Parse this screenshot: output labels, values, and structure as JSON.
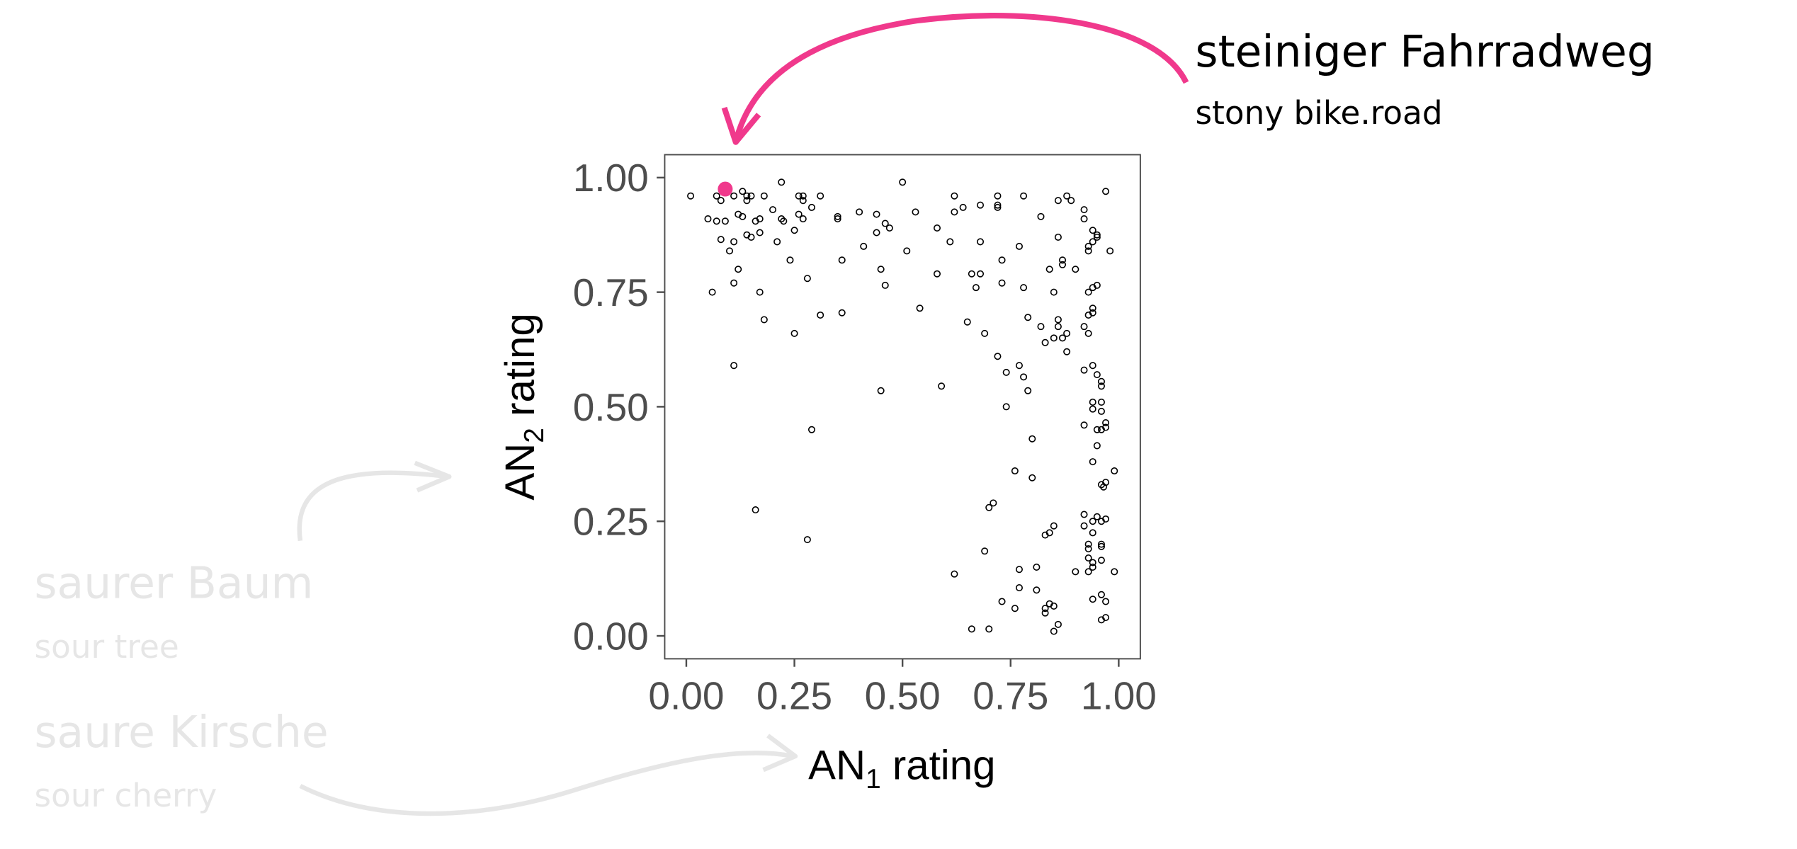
{
  "chart_data": {
    "type": "scatter",
    "xlabel": {
      "main": "AN",
      "sub": "1",
      "rest": " rating"
    },
    "ylabel": {
      "main": "AN",
      "sub": "2",
      "rest": " rating"
    },
    "xlim": [
      -0.05,
      1.05
    ],
    "ylim": [
      -0.05,
      1.05
    ],
    "xticks": [
      0,
      0.25,
      0.5,
      0.75,
      1
    ],
    "yticks": [
      0,
      0.25,
      0.5,
      0.75,
      1
    ],
    "xtick_labels": [
      "0.00",
      "0.25",
      "0.50",
      "0.75",
      "1.00"
    ],
    "ytick_labels": [
      "0.00",
      "0.25",
      "0.50",
      "0.75",
      "1.00"
    ],
    "grid": false,
    "highlight": {
      "x": 0.09,
      "y": 0.975,
      "color": "#f0398c"
    },
    "points": [
      [
        0.01,
        0.96
      ],
      [
        0.07,
        0.96
      ],
      [
        0.11,
        0.96
      ],
      [
        0.13,
        0.97
      ],
      [
        0.14,
        0.96
      ],
      [
        0.15,
        0.96
      ],
      [
        0.22,
        0.99
      ],
      [
        0.18,
        0.96
      ],
      [
        0.26,
        0.96
      ],
      [
        0.27,
        0.95
      ],
      [
        0.27,
        0.96
      ],
      [
        0.31,
        0.96
      ],
      [
        0.5,
        0.99
      ],
      [
        0.62,
        0.96
      ],
      [
        0.72,
        0.96
      ],
      [
        0.78,
        0.96
      ],
      [
        0.88,
        0.96
      ],
      [
        0.97,
        0.97
      ],
      [
        0.86,
        0.95
      ],
      [
        0.72,
        0.94
      ],
      [
        0.72,
        0.935
      ],
      [
        0.89,
        0.95
      ],
      [
        0.14,
        0.95
      ],
      [
        0.08,
        0.95
      ],
      [
        0.05,
        0.91
      ],
      [
        0.07,
        0.905
      ],
      [
        0.09,
        0.905
      ],
      [
        0.12,
        0.92
      ],
      [
        0.13,
        0.915
      ],
      [
        0.16,
        0.905
      ],
      [
        0.17,
        0.91
      ],
      [
        0.2,
        0.93
      ],
      [
        0.22,
        0.91
      ],
      [
        0.225,
        0.905
      ],
      [
        0.26,
        0.92
      ],
      [
        0.27,
        0.91
      ],
      [
        0.29,
        0.935
      ],
      [
        0.35,
        0.915
      ],
      [
        0.35,
        0.91
      ],
      [
        0.4,
        0.925
      ],
      [
        0.44,
        0.92
      ],
      [
        0.46,
        0.9
      ],
      [
        0.47,
        0.89
      ],
      [
        0.53,
        0.925
      ],
      [
        0.62,
        0.925
      ],
      [
        0.64,
        0.935
      ],
      [
        0.68,
        0.94
      ],
      [
        0.82,
        0.915
      ],
      [
        0.92,
        0.93
      ],
      [
        0.92,
        0.91
      ],
      [
        0.94,
        0.885
      ],
      [
        0.08,
        0.865
      ],
      [
        0.1,
        0.84
      ],
      [
        0.11,
        0.86
      ],
      [
        0.14,
        0.875
      ],
      [
        0.15,
        0.87
      ],
      [
        0.17,
        0.88
      ],
      [
        0.21,
        0.86
      ],
      [
        0.25,
        0.885
      ],
      [
        0.41,
        0.85
      ],
      [
        0.44,
        0.88
      ],
      [
        0.51,
        0.84
      ],
      [
        0.58,
        0.89
      ],
      [
        0.61,
        0.86
      ],
      [
        0.68,
        0.86
      ],
      [
        0.77,
        0.85
      ],
      [
        0.86,
        0.87
      ],
      [
        0.93,
        0.85
      ],
      [
        0.94,
        0.86
      ],
      [
        0.95,
        0.875
      ],
      [
        0.95,
        0.87
      ],
      [
        0.98,
        0.84
      ],
      [
        0.93,
        0.84
      ],
      [
        0.06,
        0.75
      ],
      [
        0.12,
        0.8
      ],
      [
        0.11,
        0.77
      ],
      [
        0.17,
        0.75
      ],
      [
        0.24,
        0.82
      ],
      [
        0.28,
        0.78
      ],
      [
        0.36,
        0.82
      ],
      [
        0.45,
        0.8
      ],
      [
        0.46,
        0.765
      ],
      [
        0.58,
        0.79
      ],
      [
        0.66,
        0.79
      ],
      [
        0.68,
        0.79
      ],
      [
        0.67,
        0.76
      ],
      [
        0.73,
        0.77
      ],
      [
        0.73,
        0.82
      ],
      [
        0.78,
        0.76
      ],
      [
        0.84,
        0.8
      ],
      [
        0.85,
        0.75
      ],
      [
        0.87,
        0.81
      ],
      [
        0.9,
        0.8
      ],
      [
        0.87,
        0.82
      ],
      [
        0.94,
        0.76
      ],
      [
        0.95,
        0.765
      ],
      [
        0.93,
        0.75
      ],
      [
        0.18,
        0.69
      ],
      [
        0.31,
        0.7
      ],
      [
        0.36,
        0.705
      ],
      [
        0.54,
        0.715
      ],
      [
        0.65,
        0.685
      ],
      [
        0.69,
        0.66
      ],
      [
        0.79,
        0.695
      ],
      [
        0.82,
        0.675
      ],
      [
        0.83,
        0.64
      ],
      [
        0.86,
        0.69
      ],
      [
        0.86,
        0.675
      ],
      [
        0.87,
        0.65
      ],
      [
        0.88,
        0.66
      ],
      [
        0.93,
        0.7
      ],
      [
        0.94,
        0.715
      ],
      [
        0.94,
        0.705
      ],
      [
        0.92,
        0.675
      ],
      [
        0.93,
        0.66
      ],
      [
        0.85,
        0.65
      ],
      [
        0.88,
        0.62
      ],
      [
        0.25,
        0.66
      ],
      [
        0.11,
        0.59
      ],
      [
        0.45,
        0.535
      ],
      [
        0.59,
        0.545
      ],
      [
        0.72,
        0.61
      ],
      [
        0.74,
        0.575
      ],
      [
        0.77,
        0.59
      ],
      [
        0.78,
        0.565
      ],
      [
        0.79,
        0.535
      ],
      [
        0.74,
        0.5
      ],
      [
        0.94,
        0.59
      ],
      [
        0.95,
        0.57
      ],
      [
        0.96,
        0.555
      ],
      [
        0.96,
        0.545
      ],
      [
        0.92,
        0.58
      ],
      [
        0.94,
        0.51
      ],
      [
        0.96,
        0.51
      ],
      [
        0.94,
        0.495
      ],
      [
        0.96,
        0.49
      ],
      [
        0.97,
        0.465
      ],
      [
        0.29,
        0.45
      ],
      [
        0.8,
        0.43
      ],
      [
        0.76,
        0.36
      ],
      [
        0.8,
        0.345
      ],
      [
        0.92,
        0.46
      ],
      [
        0.95,
        0.45
      ],
      [
        0.96,
        0.45
      ],
      [
        0.97,
        0.455
      ],
      [
        0.95,
        0.415
      ],
      [
        0.94,
        0.38
      ],
      [
        0.96,
        0.33
      ],
      [
        0.97,
        0.335
      ],
      [
        0.99,
        0.36
      ],
      [
        0.965,
        0.325
      ],
      [
        0.16,
        0.275
      ],
      [
        0.28,
        0.21
      ],
      [
        0.71,
        0.29
      ],
      [
        0.7,
        0.28
      ],
      [
        0.83,
        0.22
      ],
      [
        0.84,
        0.225
      ],
      [
        0.85,
        0.24
      ],
      [
        0.92,
        0.265
      ],
      [
        0.92,
        0.24
      ],
      [
        0.94,
        0.25
      ],
      [
        0.95,
        0.26
      ],
      [
        0.96,
        0.25
      ],
      [
        0.94,
        0.225
      ],
      [
        0.93,
        0.2
      ],
      [
        0.93,
        0.19
      ],
      [
        0.96,
        0.2
      ],
      [
        0.96,
        0.195
      ],
      [
        0.97,
        0.255
      ],
      [
        0.62,
        0.135
      ],
      [
        0.69,
        0.185
      ],
      [
        0.73,
        0.075
      ],
      [
        0.76,
        0.06
      ],
      [
        0.77,
        0.105
      ],
      [
        0.77,
        0.145
      ],
      [
        0.81,
        0.1
      ],
      [
        0.81,
        0.15
      ],
      [
        0.83,
        0.06
      ],
      [
        0.83,
        0.05
      ],
      [
        0.84,
        0.07
      ],
      [
        0.85,
        0.065
      ],
      [
        0.86,
        0.025
      ],
      [
        0.85,
        0.01
      ],
      [
        0.66,
        0.015
      ],
      [
        0.7,
        0.015
      ],
      [
        0.9,
        0.14
      ],
      [
        0.93,
        0.14
      ],
      [
        0.94,
        0.16
      ],
      [
        0.94,
        0.15
      ],
      [
        0.96,
        0.165
      ],
      [
        0.94,
        0.08
      ],
      [
        0.96,
        0.09
      ],
      [
        0.97,
        0.075
      ],
      [
        0.96,
        0.035
      ],
      [
        0.97,
        0.04
      ],
      [
        0.99,
        0.14
      ],
      [
        0.93,
        0.17
      ]
    ]
  },
  "annotations": {
    "highlight_label": "steiniger Fahrradweg",
    "highlight_translation": "stony bike.road",
    "faded_1_label": "saurer Baum",
    "faded_1_translation": "sour tree",
    "faded_2_label": "saure Kirsche",
    "faded_2_translation": "sour cherry",
    "highlight_color": "#f0398c",
    "faded_color": "#e6e6e6"
  }
}
